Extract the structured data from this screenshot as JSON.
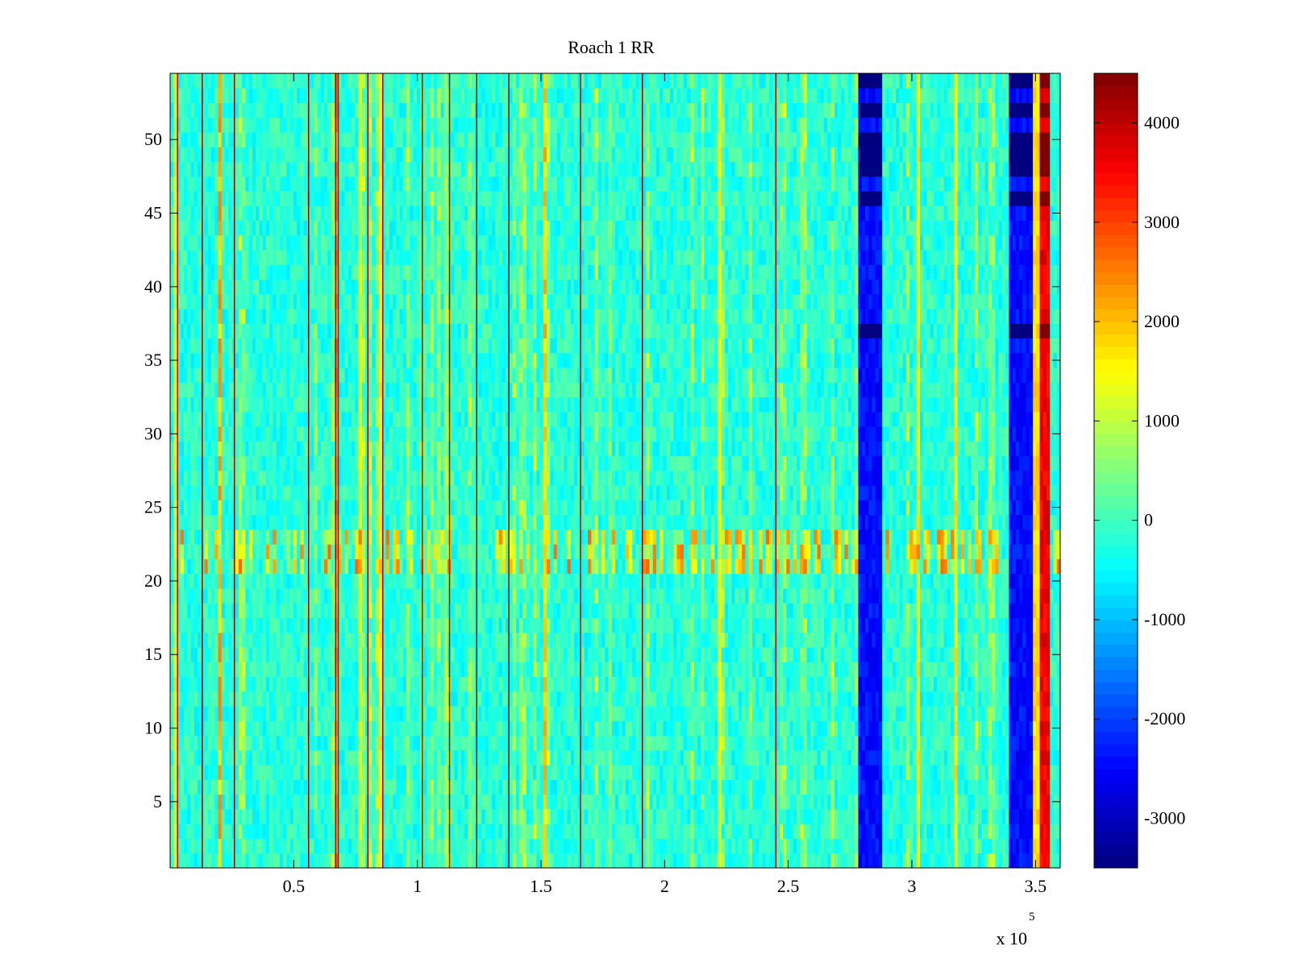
{
  "chart_data": {
    "type": "heatmap",
    "title": "Roach 1 RR",
    "xlabel": "",
    "ylabel": "",
    "x_exponent_label": "x 10",
    "x_exponent_power": "5",
    "xlim": [
      0,
      360000
    ],
    "ylim": [
      0.5,
      54.5
    ],
    "x_ticks": [
      {
        "value": 50000,
        "label": "0.5"
      },
      {
        "value": 100000,
        "label": "1"
      },
      {
        "value": 150000,
        "label": "1.5"
      },
      {
        "value": 200000,
        "label": "2"
      },
      {
        "value": 250000,
        "label": "2.5"
      },
      {
        "value": 300000,
        "label": "3"
      },
      {
        "value": 350000,
        "label": "3.5"
      }
    ],
    "y_ticks": [
      {
        "value": 5,
        "label": "5"
      },
      {
        "value": 10,
        "label": "10"
      },
      {
        "value": 15,
        "label": "15"
      },
      {
        "value": 20,
        "label": "20"
      },
      {
        "value": 25,
        "label": "25"
      },
      {
        "value": 30,
        "label": "30"
      },
      {
        "value": 35,
        "label": "35"
      },
      {
        "value": 40,
        "label": "40"
      },
      {
        "value": 45,
        "label": "45"
      },
      {
        "value": 50,
        "label": "50"
      }
    ],
    "colorbar": {
      "colormap": "jet",
      "range": [
        -3500,
        4500
      ],
      "ticks": [
        {
          "value": -3000,
          "label": "-3000"
        },
        {
          "value": -2000,
          "label": "-2000"
        },
        {
          "value": -1000,
          "label": "-1000"
        },
        {
          "value": 0,
          "label": "0"
        },
        {
          "value": 1000,
          "label": "1000"
        },
        {
          "value": 2000,
          "label": "2000"
        },
        {
          "value": 3000,
          "label": "3000"
        },
        {
          "value": 4000,
          "label": "4000"
        }
      ]
    },
    "rows": 54,
    "background_value": -200,
    "dark_vertical_lines_x": [
      3000,
      13000,
      26000,
      56000,
      67000,
      68000,
      80000,
      86000,
      102000,
      113000,
      124000,
      137000,
      166000,
      191000,
      245000
    ],
    "stripe_regions": [
      {
        "x_start": 278000,
        "x_end": 288000,
        "value": -2400,
        "saturated_rows": [
          [
            37,
            37
          ],
          [
            46,
            46
          ],
          [
            48,
            50
          ],
          [
            52,
            52
          ],
          [
            54,
            54
          ]
        ]
      },
      {
        "x_start": 339000,
        "x_end": 349000,
        "value": -2400,
        "saturated_rows": [
          [
            37,
            37
          ],
          [
            46,
            46
          ],
          [
            48,
            50
          ],
          [
            52,
            52
          ],
          [
            54,
            54
          ]
        ]
      },
      {
        "x_start": 349000,
        "x_end": 352000,
        "value": 1800,
        "saturated_rows": []
      },
      {
        "x_start": 352000,
        "x_end": 356000,
        "value": 3600,
        "saturated_rows": [
          [
            37,
            37
          ],
          [
            46,
            46
          ],
          [
            48,
            50
          ],
          [
            52,
            52
          ],
          [
            54,
            54
          ]
        ]
      }
    ],
    "active_row_band": {
      "rows": [
        21,
        23
      ],
      "value": 1500
    },
    "grid": false,
    "legend": "colorbar-right"
  }
}
